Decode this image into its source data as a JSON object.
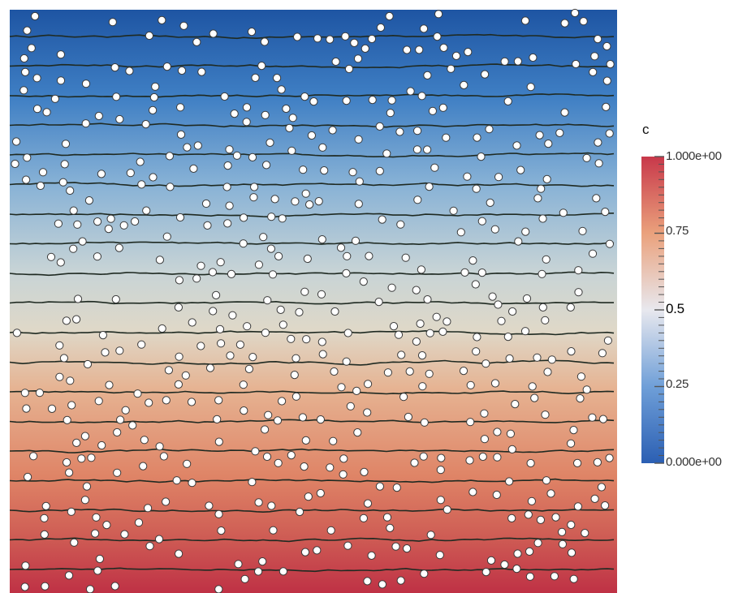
{
  "colorbar": {
    "title": "c",
    "top_label": "1.000e+00",
    "bottom_label": "0.000e+00",
    "ticks": [
      {
        "value": 0.75,
        "label": "0.75"
      },
      {
        "value": 0.5,
        "label": "0.5"
      },
      {
        "value": 0.25,
        "label": "0.25"
      }
    ],
    "colors": {
      "low": "#1f5fb4",
      "mid": "#e7e3d8",
      "high": "#c6394a"
    },
    "range": [
      0,
      1
    ]
  },
  "field": {
    "colors": {
      "top": "#235aa6",
      "middle": "#d8d8cc",
      "bottom": "#c43a48"
    },
    "contour_color": "#1f2a22",
    "particle_color": "#ffffff"
  }
}
